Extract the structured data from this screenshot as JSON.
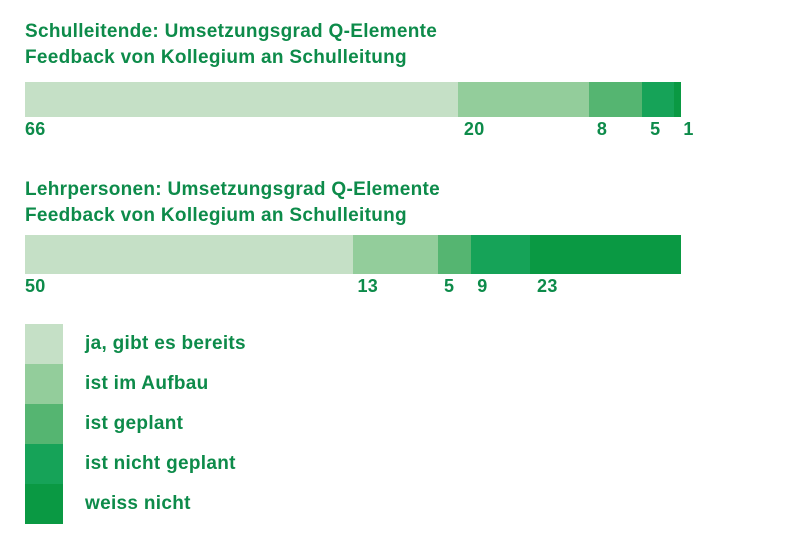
{
  "figure": {
    "background": "#ffffff",
    "text_color": "#0d8b4a"
  },
  "chart_data": [
    {
      "type": "bar",
      "orientation": "horizontal",
      "stacked": true,
      "title": "Schulleitende: Umsetzungsgrad Q-Elemente",
      "subtitle": "Feedback von Kollegium an Schulleitung",
      "categories": [
        "ja, gibt es bereits",
        "ist im Aufbau",
        "ist geplant",
        "ist nicht geplant",
        "weiss nicht"
      ],
      "values": [
        66,
        20,
        8,
        5,
        1
      ],
      "xlim": [
        0,
        100
      ],
      "value_label_position": "below-segment-start",
      "colors": [
        "#c5e0c6",
        "#93cd9b",
        "#55b571",
        "#16a358",
        "#0a9943"
      ]
    },
    {
      "type": "bar",
      "orientation": "horizontal",
      "stacked": true,
      "title": "Lehrpersonen: Umsetzungsgrad Q-Elemente",
      "subtitle": "Feedback von Kollegium an Schulleitung",
      "categories": [
        "ja, gibt es bereits",
        "ist im Aufbau",
        "ist geplant",
        "ist nicht geplant",
        "weiss nicht"
      ],
      "values": [
        50,
        13,
        5,
        9,
        23
      ],
      "xlim": [
        0,
        100
      ],
      "value_label_position": "below-segment-start",
      "colors": [
        "#c5e0c6",
        "#93cd9b",
        "#55b571",
        "#16a358",
        "#0a9943"
      ]
    }
  ],
  "legend": {
    "position": "bottom-left",
    "items": [
      {
        "label": "ja, gibt es bereits",
        "color": "#c5e0c6"
      },
      {
        "label": "ist im Aufbau",
        "color": "#93cd9b"
      },
      {
        "label": "ist geplant",
        "color": "#55b571"
      },
      {
        "label": "ist nicht geplant",
        "color": "#16a358"
      },
      {
        "label": "weiss nicht",
        "color": "#0a9943"
      }
    ]
  }
}
